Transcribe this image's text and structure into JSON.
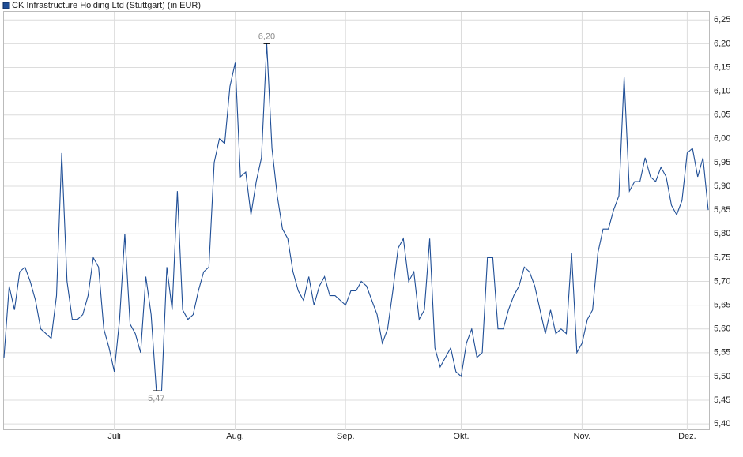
{
  "chart_data": {
    "type": "line",
    "title": "CK Infrastructure Holding Ltd (Stuttgart) (in EUR)",
    "categories": [
      null,
      null,
      null,
      null,
      null,
      null,
      null,
      null,
      null,
      null,
      null,
      null,
      null,
      null,
      null,
      null,
      null,
      null,
      null,
      null,
      null,
      "Juli",
      null,
      null,
      null,
      null,
      null,
      null,
      null,
      null,
      null,
      null,
      null,
      null,
      null,
      null,
      null,
      null,
      null,
      null,
      null,
      null,
      null,
      null,
      "Aug.",
      null,
      null,
      null,
      null,
      null,
      null,
      null,
      null,
      null,
      null,
      null,
      null,
      null,
      null,
      null,
      null,
      null,
      null,
      null,
      null,
      "Sep.",
      null,
      null,
      null,
      null,
      null,
      null,
      null,
      null,
      null,
      null,
      null,
      null,
      null,
      null,
      null,
      null,
      null,
      null,
      null,
      null,
      null,
      "Okt.",
      null,
      null,
      null,
      null,
      null,
      null,
      null,
      null,
      null,
      null,
      null,
      null,
      null,
      null,
      null,
      null,
      null,
      null,
      null,
      null,
      null,
      null,
      "Nov.",
      null,
      null,
      null,
      null,
      null,
      null,
      null,
      null,
      null,
      null,
      null,
      null,
      null,
      null,
      null,
      null,
      null,
      null,
      null,
      "Dez.",
      null,
      null,
      null,
      null
    ],
    "series": [
      {
        "name": "CK Infrastructure Holding Ltd (Stuttgart) (in EUR)",
        "color": "#1f4e96",
        "values": [
          5.54,
          5.69,
          5.64,
          5.72,
          5.73,
          5.7,
          5.66,
          5.6,
          5.59,
          5.58,
          5.67,
          5.97,
          5.7,
          5.62,
          5.62,
          5.63,
          5.67,
          5.75,
          5.73,
          5.6,
          5.56,
          5.51,
          5.62,
          5.8,
          5.61,
          5.59,
          5.55,
          5.71,
          5.63,
          5.47,
          5.47,
          5.73,
          5.64,
          5.89,
          5.64,
          5.62,
          5.63,
          5.68,
          5.72,
          5.73,
          5.95,
          6.0,
          5.99,
          6.11,
          6.16,
          5.92,
          5.93,
          5.84,
          5.91,
          5.96,
          6.2,
          5.98,
          5.88,
          5.81,
          5.79,
          5.72,
          5.68,
          5.66,
          5.71,
          5.65,
          5.69,
          5.71,
          5.67,
          5.67,
          5.66,
          5.65,
          5.68,
          5.68,
          5.7,
          5.69,
          5.66,
          5.63,
          5.57,
          5.6,
          5.68,
          5.77,
          5.79,
          5.7,
          5.72,
          5.62,
          5.64,
          5.79,
          5.56,
          5.52,
          5.54,
          5.56,
          5.51,
          5.5,
          5.57,
          5.6,
          5.54,
          5.55,
          5.75,
          5.75,
          5.6,
          5.6,
          5.64,
          5.67,
          5.69,
          5.73,
          5.72,
          5.69,
          5.64,
          5.59,
          5.64,
          5.59,
          5.6,
          5.59,
          5.76,
          5.55,
          5.57,
          5.62,
          5.64,
          5.76,
          5.81,
          5.81,
          5.85,
          5.88,
          6.13,
          5.89,
          5.91,
          5.91,
          5.96,
          5.92,
          5.91,
          5.94,
          5.92,
          5.86,
          5.84,
          5.87,
          5.97,
          5.98,
          5.92,
          5.96,
          5.85
        ]
      }
    ],
    "annotations": [
      {
        "value": 6.2,
        "label": "6,20"
      },
      {
        "value": 5.47,
        "label": "5,47"
      }
    ],
    "ylim": [
      5.387,
      6.267
    ],
    "yticks": [
      {
        "value": 5.4,
        "label": "5,40"
      },
      {
        "value": 5.45,
        "label": "5,45"
      },
      {
        "value": 5.5,
        "label": "5,50"
      },
      {
        "value": 5.55,
        "label": "5,55"
      },
      {
        "value": 5.6,
        "label": "5,60"
      },
      {
        "value": 5.65,
        "label": "5,65"
      },
      {
        "value": 5.7,
        "label": "5,70"
      },
      {
        "value": 5.75,
        "label": "5,75"
      },
      {
        "value": 5.8,
        "label": "5,80"
      },
      {
        "value": 5.85,
        "label": "5,85"
      },
      {
        "value": 5.9,
        "label": "5,90"
      },
      {
        "value": 5.95,
        "label": "5,95"
      },
      {
        "value": 6.0,
        "label": "6,00"
      },
      {
        "value": 6.05,
        "label": "6,05"
      },
      {
        "value": 6.1,
        "label": "6,10"
      },
      {
        "value": 6.15,
        "label": "6,15"
      },
      {
        "value": 6.2,
        "label": "6,20"
      },
      {
        "value": 6.25,
        "label": "6,25"
      }
    ],
    "grid": true
  }
}
